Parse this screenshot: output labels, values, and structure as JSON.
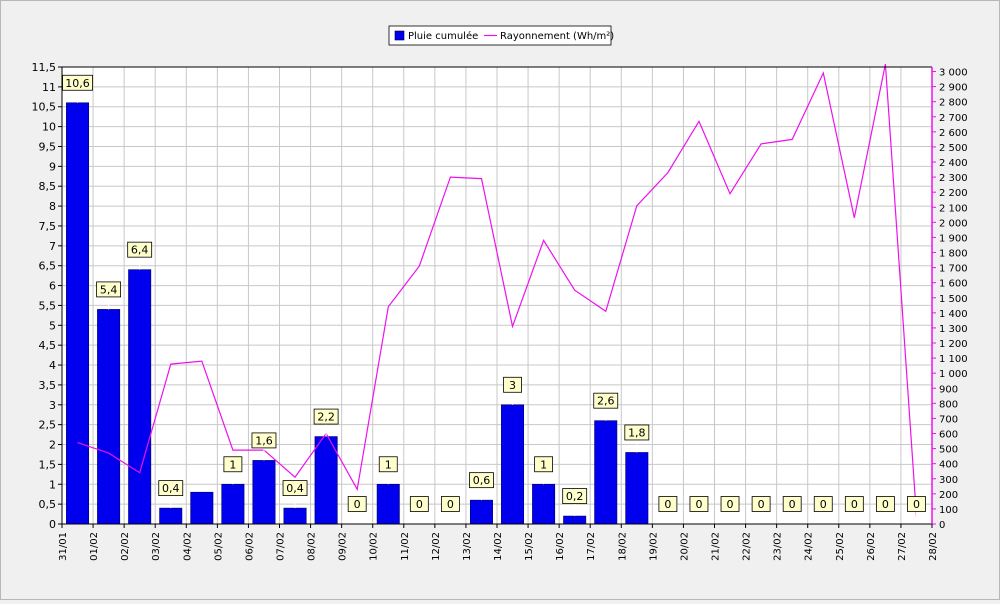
{
  "chart_data": {
    "type": "bar",
    "x_ticks": [
      "31/01",
      "01/02",
      "02/02",
      "03/02",
      "04/02",
      "05/02",
      "06/02",
      "07/02",
      "08/02",
      "09/02",
      "10/02",
      "11/02",
      "12/02",
      "13/02",
      "14/02",
      "15/02",
      "16/02",
      "17/02",
      "18/02",
      "19/02",
      "20/02",
      "21/02",
      "22/02",
      "23/02",
      "24/02",
      "25/02",
      "26/02",
      "27/02",
      "28/02"
    ],
    "categories": [
      "01/02",
      "02/02",
      "03/02",
      "04/02",
      "05/02",
      "06/02",
      "07/02",
      "08/02",
      "09/02",
      "10/02",
      "11/02",
      "12/02",
      "13/02",
      "14/02",
      "15/02",
      "16/02",
      "17/02",
      "18/02",
      "19/02",
      "20/02",
      "21/02",
      "22/02",
      "23/02",
      "24/02",
      "25/02",
      "26/02",
      "27/02",
      "28/02"
    ],
    "series": [
      {
        "name": "Pluie cumulée",
        "kind": "bar",
        "color": "#0000ee",
        "axis": "left",
        "values": [
          10.6,
          5.4,
          6.4,
          0.4,
          0.8,
          1,
          1.6,
          0.4,
          2.2,
          0,
          1,
          0,
          0,
          0.6,
          3,
          1,
          0.2,
          2.6,
          1.8,
          0,
          0,
          0,
          0,
          0,
          0,
          0,
          0,
          0
        ]
      },
      {
        "name": "Rayonnement (Wh/m²)",
        "kind": "line",
        "color": "#ee11ee",
        "axis": "right",
        "values": [
          540,
          470,
          340,
          1060,
          1080,
          490,
          490,
          310,
          600,
          230,
          1440,
          1710,
          2300,
          2290,
          1310,
          1880,
          1550,
          1410,
          2110,
          2330,
          2670,
          2190,
          2520,
          2550,
          2990,
          2030,
          3050,
          50
        ]
      }
    ],
    "data_labels": [
      {
        "index": 0,
        "text": "10,6"
      },
      {
        "index": 1,
        "text": "5,4"
      },
      {
        "index": 2,
        "text": "6,4"
      },
      {
        "index": 3,
        "text": "0,4"
      },
      {
        "index": 5,
        "text": "1"
      },
      {
        "index": 6,
        "text": "1,6"
      },
      {
        "index": 7,
        "text": "0,4"
      },
      {
        "index": 8,
        "text": "2,2"
      },
      {
        "index": 9,
        "text": "0"
      },
      {
        "index": 10,
        "text": "1"
      },
      {
        "index": 11,
        "text": "0"
      },
      {
        "index": 12,
        "text": "0"
      },
      {
        "index": 13,
        "text": "0,6"
      },
      {
        "index": 14,
        "text": "3"
      },
      {
        "index": 15,
        "text": "1"
      },
      {
        "index": 16,
        "text": "0,2"
      },
      {
        "index": 17,
        "text": "2,6"
      },
      {
        "index": 18,
        "text": "1,8"
      },
      {
        "index": 19,
        "text": "0"
      },
      {
        "index": 20,
        "text": "0"
      },
      {
        "index": 21,
        "text": "0"
      },
      {
        "index": 22,
        "text": "0"
      },
      {
        "index": 23,
        "text": "0"
      },
      {
        "index": 24,
        "text": "0"
      },
      {
        "index": 25,
        "text": "0"
      },
      {
        "index": 26,
        "text": "0"
      },
      {
        "index": 27,
        "text": "0"
      }
    ],
    "y_left": {
      "ylim": [
        0,
        11.5
      ],
      "ticks": [
        "0",
        "0,5",
        "1",
        "1,5",
        "2",
        "2,5",
        "3",
        "3,5",
        "4",
        "4,5",
        "5",
        "5,5",
        "6",
        "6,5",
        "7",
        "7,5",
        "8",
        "8,5",
        "9",
        "9,5",
        "10",
        "10,5",
        "11",
        "11,5"
      ]
    },
    "y_right": {
      "ylim": [
        0,
        3030
      ],
      "ticks": [
        "0",
        "100",
        "200",
        "300",
        "400",
        "500",
        "600",
        "700",
        "800",
        "900",
        "1 000",
        "1 100",
        "1 200",
        "1 300",
        "1 400",
        "1 500",
        "1 600",
        "1 700",
        "1 800",
        "1 900",
        "2 000",
        "2 100",
        "2 200",
        "2 300",
        "2 400",
        "2 500",
        "2 600",
        "2 700",
        "2 800",
        "2 900",
        "3 000"
      ]
    },
    "xlabel": "",
    "ylabel": "",
    "title": "",
    "grid": true,
    "legend_position": "top-center"
  }
}
